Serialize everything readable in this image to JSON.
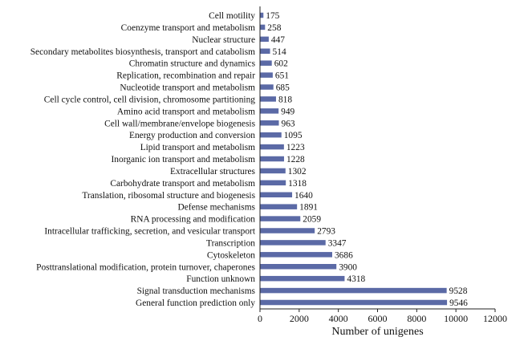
{
  "chart_data": {
    "type": "bar",
    "orientation": "horizontal",
    "title": "",
    "xlabel": "Number of unigenes",
    "ylabel": "",
    "xlim": [
      0,
      12000
    ],
    "xticks": [
      0,
      2000,
      4000,
      6000,
      8000,
      10000,
      12000
    ],
    "grid": false,
    "bar_color": "#5b6aa6",
    "categories": [
      "Cell motility",
      "Coenzyme transport and metabolism",
      "Nuclear structure",
      "Secondary metabolites biosynthesis, transport and catabolism",
      "Chromatin structure and dynamics",
      "Replication, recombination and repair",
      "Nucleotide transport and metabolism",
      "Cell cycle control, cell division, chromosome partitioning",
      "Amino acid transport and metabolism",
      "Cell wall/membrane/envelope biogenesis",
      "Energy production and conversion",
      "Lipid transport and metabolism",
      "Inorganic ion transport and metabolism",
      "Extracellular structures",
      "Carbohydrate transport and metabolism",
      "Translation, ribosomal structure and biogenesis",
      "Defense mechanisms",
      "RNA processing and modification",
      "Intracellular trafficking, secretion, and vesicular transport",
      "Transcription",
      "Cytoskeleton",
      "Posttranslational modification, protein turnover, chaperones",
      "Function unknown",
      "Signal transduction mechanisms",
      "General function prediction only"
    ],
    "values": [
      175,
      258,
      447,
      514,
      602,
      651,
      685,
      818,
      949,
      963,
      1095,
      1223,
      1228,
      1302,
      1318,
      1640,
      1891,
      2059,
      2793,
      3347,
      3686,
      3900,
      4318,
      9528,
      9546
    ]
  }
}
